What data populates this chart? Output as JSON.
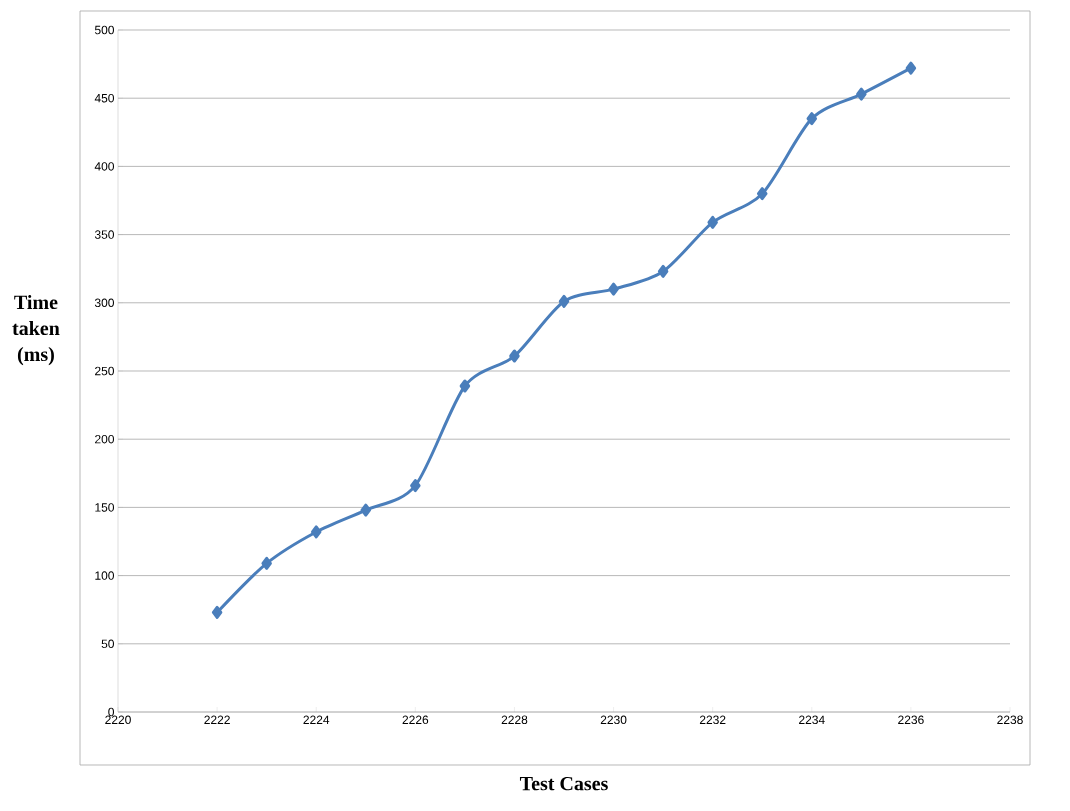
{
  "chart_data": {
    "type": "line",
    "xlabel": "Test Cases",
    "ylabel": "Time taken (ms)",
    "x": [
      2222,
      2223,
      2224,
      2225,
      2226,
      2227,
      2228,
      2229,
      2230,
      2231,
      2232,
      2233,
      2234,
      2235,
      2236
    ],
    "series": [
      {
        "color": "#4a7ebb",
        "values": [
          73,
          109,
          132,
          148,
          166,
          239,
          261,
          301,
          310,
          323,
          359,
          380,
          435,
          453,
          472
        ]
      }
    ],
    "xlim": [
      2220,
      2238
    ],
    "xticks": [
      2220,
      2222,
      2224,
      2226,
      2228,
      2230,
      2232,
      2234,
      2236,
      2238
    ],
    "ylim": [
      0,
      500
    ],
    "yticks": [
      0,
      50,
      100,
      150,
      200,
      250,
      300,
      350,
      400,
      450,
      500
    ],
    "grid": "y",
    "marker": "diamond",
    "line_style": "solid"
  }
}
